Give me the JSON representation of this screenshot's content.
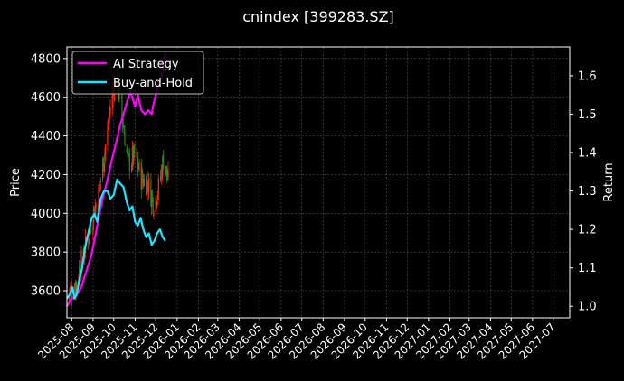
{
  "chart_data": {
    "type": "line",
    "title": "cnindex [399283.SZ]",
    "ylabel": "Price",
    "y2label": "Return",
    "ylim": [
      3460,
      4860
    ],
    "y2lim": [
      0.97,
      1.675
    ],
    "yticks": [
      3600,
      3800,
      4000,
      4200,
      4400,
      4600,
      4800
    ],
    "y2ticks": [
      1.0,
      1.1,
      1.2,
      1.3,
      1.4,
      1.5,
      1.6
    ],
    "xlim": [
      "2025-07-25",
      "2027-07-25"
    ],
    "xticks": [
      "2025-08",
      "2025-09",
      "2025-10",
      "2025-11",
      "2025-12",
      "2026-01",
      "2026-02",
      "2026-03",
      "2026-04",
      "2026-05",
      "2026-06",
      "2026-07",
      "2026-08",
      "2026-09",
      "2026-10",
      "2026-11",
      "2026-12",
      "2027-01",
      "2027-02",
      "2027-03",
      "2027-04",
      "2027-05",
      "2027-06",
      "2027-07"
    ],
    "grid": true,
    "legend_position": "top-left",
    "price_series": {
      "kind": "candlestick",
      "up_color": "#ff2a1a",
      "down_color": "#1f8c1f",
      "anchors": [
        [
          "2025-07-25",
          3580
        ],
        [
          "2025-08-05",
          3620
        ],
        [
          "2025-08-15",
          3750
        ],
        [
          "2025-08-25",
          3880
        ],
        [
          "2025-09-01",
          4000
        ],
        [
          "2025-09-08",
          4080
        ],
        [
          "2025-09-15",
          4250
        ],
        [
          "2025-09-22",
          4420
        ],
        [
          "2025-09-28",
          4620
        ],
        [
          "2025-10-05",
          4700
        ],
        [
          "2025-10-15",
          4450
        ],
        [
          "2025-10-22",
          4260
        ],
        [
          "2025-11-01",
          4300
        ],
        [
          "2025-11-10",
          4180
        ],
        [
          "2025-11-20",
          4150
        ],
        [
          "2025-11-28",
          4050
        ],
        [
          "2025-12-05",
          4130
        ],
        [
          "2025-12-12",
          4280
        ],
        [
          "2025-12-20",
          4150
        ]
      ]
    },
    "series": [
      {
        "name": "AI Strategy",
        "color": "#ff00ff",
        "points": [
          [
            "2025-07-25",
            1.0
          ],
          [
            "2025-08-01",
            1.02
          ],
          [
            "2025-08-08",
            1.03
          ],
          [
            "2025-08-15",
            1.05
          ],
          [
            "2025-08-22",
            1.09
          ],
          [
            "2025-08-29",
            1.13
          ],
          [
            "2025-09-05",
            1.19
          ],
          [
            "2025-09-10",
            1.24
          ],
          [
            "2025-09-15",
            1.28
          ],
          [
            "2025-09-22",
            1.33
          ],
          [
            "2025-09-28",
            1.38
          ],
          [
            "2025-10-05",
            1.43
          ],
          [
            "2025-10-10",
            1.47
          ],
          [
            "2025-10-15",
            1.5
          ],
          [
            "2025-10-20",
            1.53
          ],
          [
            "2025-10-25",
            1.56
          ],
          [
            "2025-11-01",
            1.52
          ],
          [
            "2025-11-05",
            1.55
          ],
          [
            "2025-11-10",
            1.51
          ],
          [
            "2025-11-15",
            1.5
          ],
          [
            "2025-11-20",
            1.51
          ],
          [
            "2025-11-25",
            1.5
          ],
          [
            "2025-11-28",
            1.53
          ],
          [
            "2025-12-01",
            1.55
          ],
          [
            "2025-12-05",
            1.58
          ],
          [
            "2025-12-10",
            1.6
          ],
          [
            "2025-12-15",
            1.66
          ]
        ]
      },
      {
        "name": "Buy-and-Hold",
        "color": "#19e8ff",
        "points": [
          [
            "2025-07-25",
            1.02
          ],
          [
            "2025-07-29",
            1.03
          ],
          [
            "2025-08-02",
            1.05
          ],
          [
            "2025-08-05",
            1.02
          ],
          [
            "2025-08-08",
            1.03
          ],
          [
            "2025-08-12",
            1.07
          ],
          [
            "2025-08-16",
            1.1
          ],
          [
            "2025-08-20",
            1.15
          ],
          [
            "2025-08-25",
            1.19
          ],
          [
            "2025-08-30",
            1.23
          ],
          [
            "2025-09-03",
            1.24
          ],
          [
            "2025-09-07",
            1.22
          ],
          [
            "2025-09-12",
            1.28
          ],
          [
            "2025-09-17",
            1.3
          ],
          [
            "2025-09-22",
            1.3
          ],
          [
            "2025-09-26",
            1.28
          ],
          [
            "2025-10-01",
            1.29
          ],
          [
            "2025-10-06",
            1.33
          ],
          [
            "2025-10-10",
            1.32
          ],
          [
            "2025-10-15",
            1.31
          ],
          [
            "2025-10-20",
            1.27
          ],
          [
            "2025-10-24",
            1.25
          ],
          [
            "2025-10-28",
            1.26
          ],
          [
            "2025-11-01",
            1.22
          ],
          [
            "2025-11-05",
            1.21
          ],
          [
            "2025-11-09",
            1.23
          ],
          [
            "2025-11-13",
            1.2
          ],
          [
            "2025-11-17",
            1.18
          ],
          [
            "2025-11-21",
            1.19
          ],
          [
            "2025-11-25",
            1.16
          ],
          [
            "2025-11-29",
            1.17
          ],
          [
            "2025-12-03",
            1.19
          ],
          [
            "2025-12-07",
            1.2
          ],
          [
            "2025-12-11",
            1.18
          ],
          [
            "2025-12-15",
            1.17
          ]
        ]
      }
    ]
  }
}
